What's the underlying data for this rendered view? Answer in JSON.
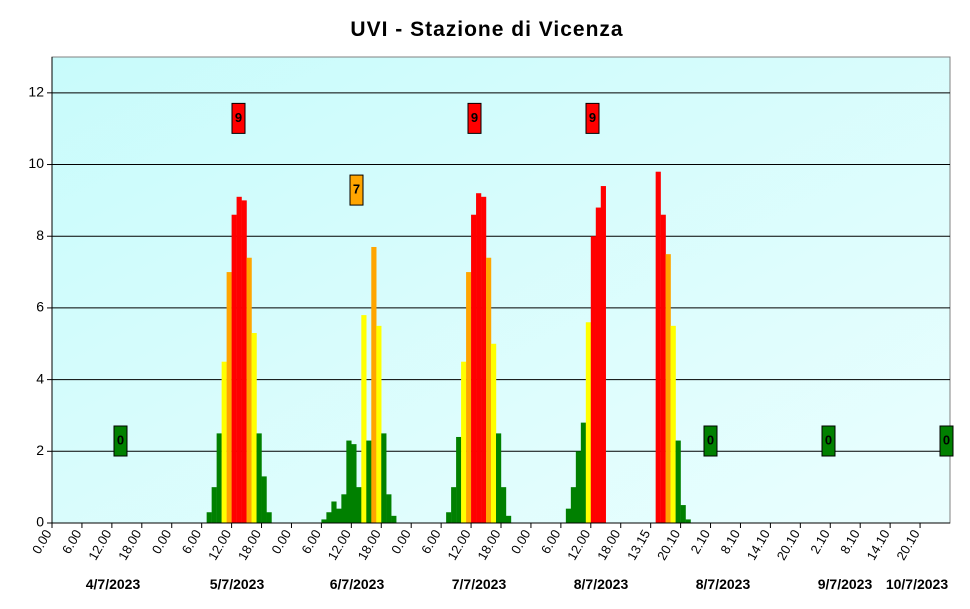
{
  "chart_data": {
    "type": "bar",
    "title": "UVI - Stazione di Vicenza",
    "ylim": [
      0,
      13
    ],
    "yticks": [
      0,
      2,
      4,
      6,
      8,
      10,
      12
    ],
    "grid": true,
    "color_bands": [
      {
        "from": 0,
        "color": "#008000"
      },
      {
        "from": 3,
        "color": "#ffff00"
      },
      {
        "from": 6,
        "color": "#ffa500"
      },
      {
        "from": 8,
        "color": "#ff0000"
      }
    ],
    "x_labels": [
      "0.00",
      "6.00",
      "12.00",
      "18.00",
      "0.00",
      "6.00",
      "12.00",
      "18.00",
      "0.00",
      "6.00",
      "12.00",
      "18.00",
      "0.00",
      "6.00",
      "12.00",
      "18.00",
      "0.00",
      "6.00",
      "12.00",
      "18.00",
      "13.15",
      "20.10",
      "2.10",
      "8.10",
      "14.10",
      "20.10",
      "2.10",
      "8.10",
      "14.10",
      "20.10"
    ],
    "date_labels": [
      "4/7/2023",
      "5/7/2023",
      "6/7/2023",
      "7/7/2023",
      "8/7/2023",
      "8/7/2023",
      "9/7/2023",
      "10/7/2023"
    ],
    "daily_max": [
      0,
      9,
      7,
      9,
      9,
      0,
      0,
      0
    ],
    "values": [
      0,
      0,
      0,
      0,
      0,
      0,
      0,
      0,
      0,
      0,
      0,
      0,
      0,
      0,
      0,
      0,
      0,
      0,
      0,
      0,
      0,
      0,
      0,
      0,
      0,
      0,
      0,
      0,
      0,
      0,
      0,
      0.3,
      1.0,
      2.5,
      4.5,
      7.0,
      8.6,
      9.1,
      9.0,
      7.4,
      5.3,
      2.5,
      1.3,
      0.3,
      0,
      0,
      0,
      0,
      0,
      0,
      0,
      0,
      0,
      0,
      0.1,
      0.3,
      0.6,
      0.4,
      0.8,
      2.3,
      2.2,
      1.0,
      5.8,
      2.3,
      7.7,
      5.5,
      2.5,
      0.8,
      0.2,
      0,
      0,
      0,
      0,
      0,
      0,
      0,
      0,
      0,
      0,
      0.3,
      1.0,
      2.4,
      4.5,
      7.0,
      8.6,
      9.2,
      9.1,
      7.4,
      5.0,
      2.5,
      1.0,
      0.2,
      0,
      0,
      0,
      0,
      0,
      0,
      0,
      0,
      0,
      0,
      0,
      0.4,
      1.0,
      2.0,
      2.8,
      5.6,
      8.0,
      8.8,
      9.4,
      0,
      0,
      0,
      0,
      0,
      0,
      0,
      0,
      0,
      0,
      9.8,
      8.6,
      7.5,
      5.5,
      2.3,
      0.5,
      0.1,
      0,
      0,
      0,
      0,
      0,
      0,
      0,
      0,
      0,
      0,
      0,
      0,
      0,
      0,
      0,
      0,
      0,
      0,
      0,
      0,
      0,
      0,
      0,
      0,
      0,
      0,
      0,
      0,
      0,
      0,
      0,
      0,
      0,
      0,
      0,
      0,
      0,
      0,
      0,
      0,
      0,
      0,
      0,
      0,
      0,
      0,
      0,
      0,
      0,
      0,
      0,
      0
    ]
  }
}
